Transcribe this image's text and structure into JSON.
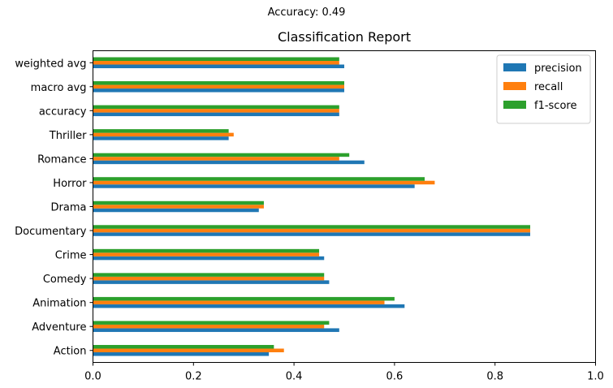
{
  "suptitle": "Accuracy: 0.49",
  "chart_data": {
    "type": "bar",
    "orientation": "horizontal",
    "title": "Classification Report",
    "xlabel": "",
    "ylabel": "",
    "xlim": [
      0,
      1.0
    ],
    "xticks": [
      "0.0",
      "0.2",
      "0.4",
      "0.6",
      "0.8",
      "1.0"
    ],
    "grid": false,
    "legend_position": "top-right",
    "categories": [
      "Action",
      "Adventure",
      "Animation",
      "Comedy",
      "Crime",
      "Documentary",
      "Drama",
      "Horror",
      "Romance",
      "Thriller",
      "accuracy",
      "macro avg",
      "weighted avg"
    ],
    "series": [
      {
        "name": "precision",
        "color": "#1f77b4",
        "values": [
          0.35,
          0.49,
          0.62,
          0.47,
          0.46,
          0.87,
          0.33,
          0.64,
          0.54,
          0.27,
          0.49,
          0.5,
          0.5
        ]
      },
      {
        "name": "recall",
        "color": "#ff7f0e",
        "values": [
          0.38,
          0.46,
          0.58,
          0.46,
          0.45,
          0.87,
          0.34,
          0.68,
          0.49,
          0.28,
          0.49,
          0.5,
          0.49
        ]
      },
      {
        "name": "f1-score",
        "color": "#2ca02c",
        "values": [
          0.36,
          0.47,
          0.6,
          0.46,
          0.45,
          0.87,
          0.34,
          0.66,
          0.51,
          0.27,
          0.49,
          0.5,
          0.49
        ]
      }
    ]
  }
}
